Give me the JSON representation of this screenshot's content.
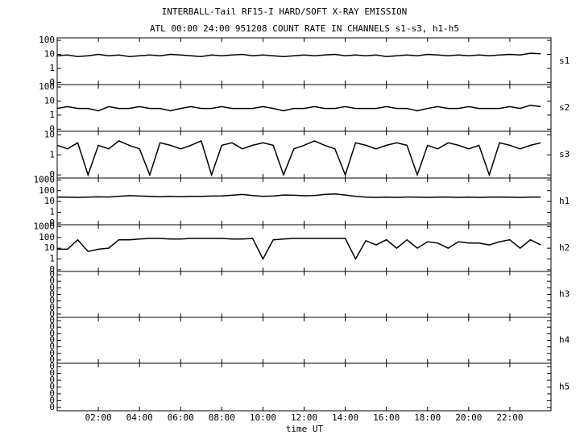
{
  "chart_data": {
    "type": "line",
    "title": "INTERBALL-Tail RF15-I HARD/SOFT X-RAY EMISSION",
    "subtitle": "ATL 00:00 24:00 951208  COUNT RATE IN CHANNELS s1-s3, h1-h5",
    "xlabel": "time UT",
    "color": "#000000",
    "x": [
      0,
      0.5,
      1,
      1.5,
      2,
      2.5,
      3,
      3.5,
      4,
      4.5,
      5,
      5.5,
      6,
      6.5,
      7,
      7.5,
      8,
      8.5,
      9,
      9.5,
      10,
      10.5,
      11,
      11.5,
      12,
      12.5,
      13,
      13.5,
      14,
      14.5,
      15,
      15.5,
      16,
      16.5,
      17,
      17.5,
      18,
      18.5,
      19,
      19.5,
      20,
      20.5,
      21,
      21.5,
      22,
      22.5,
      23,
      23.5
    ],
    "xlim": [
      0,
      24
    ],
    "xticks": [
      {
        "value": 2,
        "label": "02:00"
      },
      {
        "value": 4,
        "label": "04:00"
      },
      {
        "value": 6,
        "label": "06:00"
      },
      {
        "value": 8,
        "label": "08:00"
      },
      {
        "value": 10,
        "label": "10:00"
      },
      {
        "value": 12,
        "label": "12:00"
      },
      {
        "value": 14,
        "label": "14:00"
      },
      {
        "value": 16,
        "label": "16:00"
      },
      {
        "value": 18,
        "label": "18:00"
      },
      {
        "value": 20,
        "label": "20:00"
      },
      {
        "value": 22,
        "label": "22:00"
      }
    ],
    "panels": [
      {
        "name": "s1",
        "yscale": "log",
        "ylim": [
          0.07,
          150
        ],
        "yticks": [
          100,
          10,
          1,
          {
            "value": 0.1,
            "label": "0"
          }
        ],
        "values": [
          8,
          9,
          7,
          8,
          10,
          8,
          9,
          7,
          8,
          9,
          8,
          10,
          9,
          8,
          7,
          9,
          8,
          9,
          10,
          8,
          9,
          8,
          7,
          8,
          9,
          8,
          9,
          10,
          8,
          9,
          8,
          9,
          7,
          8,
          9,
          8,
          10,
          9,
          8,
          9,
          8,
          9,
          8,
          9,
          10,
          9,
          12,
          11
        ]
      },
      {
        "name": "s2",
        "yscale": "log",
        "ylim": [
          0.07,
          150
        ],
        "yticks": [
          100,
          10,
          1,
          {
            "value": 0.1,
            "label": "0"
          }
        ],
        "values": [
          3,
          4,
          3,
          3,
          2,
          4,
          3,
          3,
          4,
          3,
          3,
          2,
          3,
          4,
          3,
          3,
          4,
          3,
          3,
          3,
          4,
          3,
          2,
          3,
          3,
          4,
          3,
          3,
          4,
          3,
          3,
          3,
          4,
          3,
          3,
          2,
          3,
          4,
          3,
          3,
          4,
          3,
          3,
          3,
          4,
          3,
          5,
          4
        ]
      },
      {
        "name": "s3",
        "yscale": "log",
        "ylim": [
          0.07,
          15
        ],
        "yticks": [
          10,
          1,
          {
            "value": 0.1,
            "label": "0"
          }
        ],
        "values": [
          3,
          2,
          4,
          0.1,
          3,
          2,
          5,
          3,
          2,
          0.1,
          4,
          3,
          2,
          3,
          5,
          0.1,
          3,
          4,
          2,
          3,
          4,
          3,
          0.1,
          2,
          3,
          5,
          3,
          2,
          0.1,
          4,
          3,
          2,
          3,
          4,
          3,
          0.1,
          3,
          2,
          4,
          3,
          2,
          3,
          0.1,
          4,
          3,
          2,
          3,
          4
        ]
      },
      {
        "name": "h1",
        "yscale": "log",
        "ylim": [
          0.07,
          1500
        ],
        "yticks": [
          1000,
          100,
          10,
          1,
          {
            "value": 0.1,
            "label": "0"
          }
        ],
        "values": [
          25,
          25,
          24,
          25,
          27,
          26,
          30,
          35,
          32,
          30,
          28,
          30,
          28,
          30,
          30,
          32,
          33,
          38,
          45,
          36,
          30,
          32,
          40,
          38,
          34,
          36,
          45,
          50,
          40,
          30,
          25,
          24,
          25,
          24,
          26,
          25,
          24,
          25,
          26,
          24,
          25,
          24,
          25,
          26,
          25,
          24,
          25,
          26
        ]
      },
      {
        "name": "h2",
        "yscale": "log",
        "ylim": [
          0.07,
          1500
        ],
        "yticks": [
          1000,
          100,
          10,
          1,
          {
            "value": 0.1,
            "label": "0"
          }
        ],
        "values": [
          8,
          8,
          60,
          5,
          8,
          10,
          60,
          60,
          70,
          80,
          80,
          70,
          70,
          80,
          80,
          80,
          80,
          70,
          70,
          80,
          1,
          60,
          70,
          80,
          80,
          80,
          80,
          80,
          80,
          1,
          50,
          20,
          60,
          10,
          60,
          10,
          40,
          30,
          10,
          40,
          30,
          30,
          20,
          40,
          60,
          10,
          60,
          20
        ]
      },
      {
        "name": "h3",
        "yscale": "linear",
        "ylim": [
          -0.035,
          0.035
        ],
        "yticks": [
          {
            "value": 0.03,
            "label": "0"
          },
          {
            "value": 0.02,
            "label": "0"
          },
          {
            "value": 0.01,
            "label": "0"
          },
          {
            "value": 0,
            "label": "0"
          },
          {
            "value": -0.01,
            "label": "0"
          },
          {
            "value": -0.02,
            "label": "0"
          },
          {
            "value": -0.03,
            "label": "0"
          }
        ],
        "values": []
      },
      {
        "name": "h4",
        "yscale": "linear",
        "ylim": [
          -0.035,
          0.035
        ],
        "yticks": [
          {
            "value": 0.03,
            "label": "0"
          },
          {
            "value": 0.02,
            "label": "0"
          },
          {
            "value": 0.01,
            "label": "0"
          },
          {
            "value": 0,
            "label": "0"
          },
          {
            "value": -0.01,
            "label": "0"
          },
          {
            "value": -0.02,
            "label": "0"
          },
          {
            "value": -0.03,
            "label": "0"
          }
        ],
        "values": []
      },
      {
        "name": "h5",
        "yscale": "linear",
        "ylim": [
          -0.035,
          0.035
        ],
        "yticks": [
          {
            "value": 0.03,
            "label": "0"
          },
          {
            "value": 0.02,
            "label": "0"
          },
          {
            "value": 0.01,
            "label": "0"
          },
          {
            "value": 0,
            "label": "0"
          },
          {
            "value": -0.01,
            "label": "0"
          },
          {
            "value": -0.02,
            "label": "0"
          },
          {
            "value": -0.03,
            "label": "0"
          }
        ],
        "values": []
      }
    ]
  }
}
